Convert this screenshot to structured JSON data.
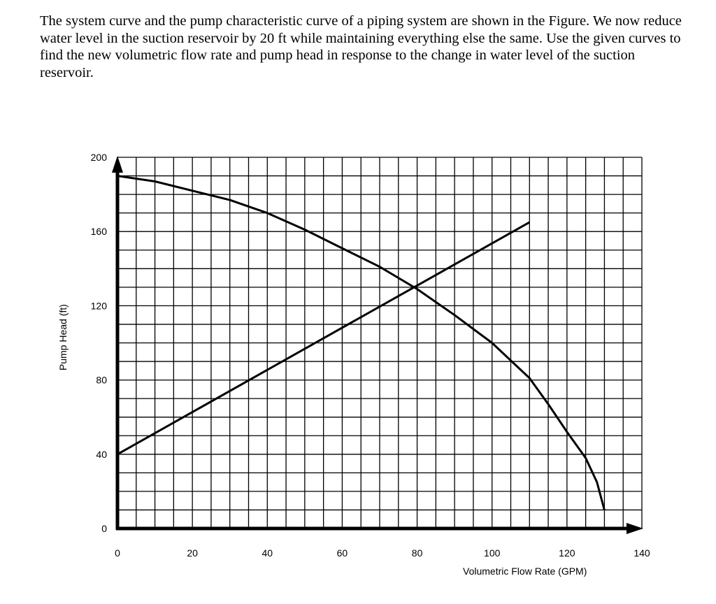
{
  "problem_text": "The system curve and the pump characteristic curve of a piping system are shown in the Figure.  We now reduce water level in the suction reservoir by 20 ft while maintaining everything else the same.  Use the given curves to find the new volumetric flow rate and pump head in response to the change in water level of the suction reservoir.",
  "chart_data": {
    "type": "line",
    "title": "",
    "xlabel": "Volumetric Flow Rate (GPM)",
    "ylabel": "Pump Head (ft)",
    "xlim": [
      0,
      140
    ],
    "ylim": [
      0,
      200
    ],
    "x_ticks": [
      0,
      20,
      40,
      60,
      80,
      100,
      120,
      140
    ],
    "y_ticks": [
      0,
      40,
      80,
      120,
      160,
      200
    ],
    "grid": true,
    "grid_step_x": 5,
    "grid_step_y": 10,
    "line_color": "#000000",
    "series": [
      {
        "x": [
          0,
          10,
          20,
          30,
          40,
          50,
          60,
          70,
          80,
          90,
          100,
          110,
          115,
          120,
          125,
          128,
          130
        ],
        "y": [
          190,
          187,
          182,
          177,
          170,
          161,
          151,
          141,
          129,
          115,
          100,
          81,
          67,
          52,
          38,
          25,
          10
        ]
      },
      {
        "x": [
          0,
          110
        ],
        "y": [
          40,
          165
        ]
      }
    ]
  }
}
